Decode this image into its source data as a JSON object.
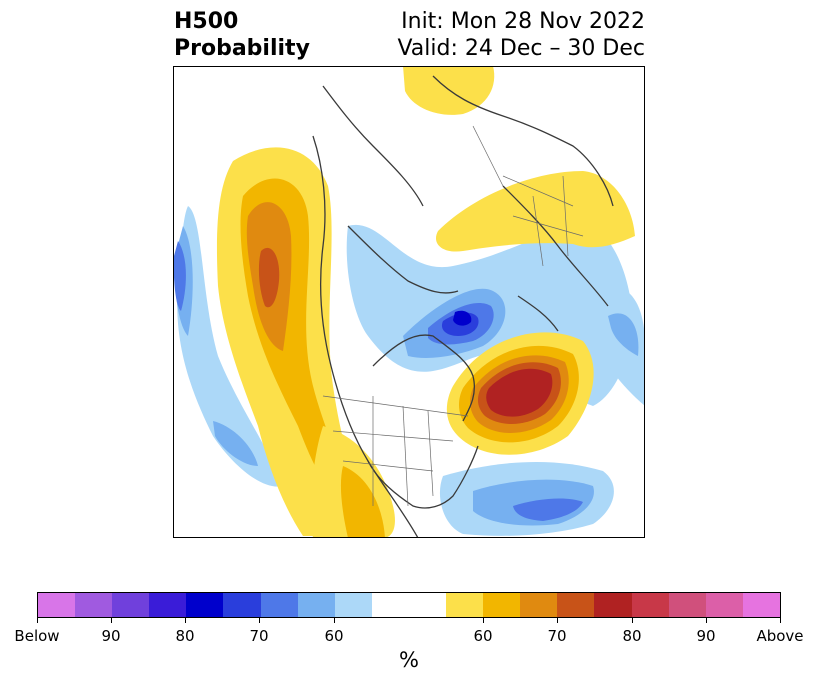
{
  "title": {
    "left_line1": "H500",
    "left_line2": "Probability",
    "right_line1": "Init: Mon 28 Nov 2022",
    "right_line2": "Valid: 24 Dec – 30 Dec"
  },
  "colorbar": {
    "units": "%",
    "colors": [
      "#d875e8",
      "#a05ae0",
      "#7040dc",
      "#3a1cd8",
      "#0000cc",
      "#2a3edc",
      "#4e78e8",
      "#76b0f0",
      "#acd8f8",
      "#ffffff",
      "#ffffff",
      "#fce04a",
      "#f2b600",
      "#e08a10",
      "#c85318",
      "#b02222",
      "#c83848",
      "#d0507c",
      "#dc5fa8",
      "#e673e0"
    ],
    "tick_labels": [
      "Below",
      "90",
      "80",
      "70",
      "60",
      "60",
      "70",
      "80",
      "90",
      "Above"
    ]
  },
  "map": {
    "projection": "polar-stereographic",
    "region": "Northern Hemisphere (North America / Arctic / Europe)"
  }
}
